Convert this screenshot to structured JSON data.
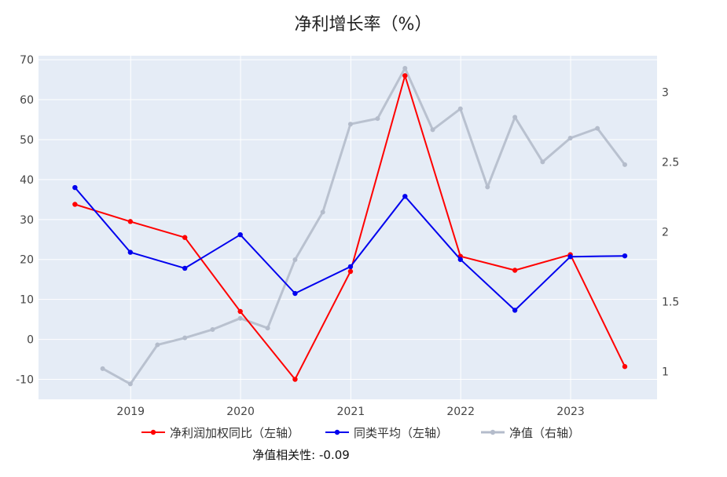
{
  "chart_data": {
    "type": "line",
    "title": "净利增长率（%）",
    "annotation": "净值相关性: -0.09",
    "left_axis": {
      "range": [
        -15,
        71
      ],
      "ticks": [
        -10,
        0,
        10,
        20,
        30,
        40,
        50,
        60,
        70
      ]
    },
    "right_axis": {
      "range": [
        0.8,
        3.26
      ],
      "ticks": [
        1,
        1.5,
        2,
        2.5,
        3
      ]
    },
    "x_axis": {
      "range": [
        "2018-03-01",
        "2023-10-15"
      ],
      "ticks": [
        "2019",
        "2020",
        "2021",
        "2022",
        "2023"
      ]
    },
    "grid": true,
    "legend_position": "bottom-center",
    "series": [
      {
        "name": "净利润加权同比（左轴）",
        "axis": "left",
        "color": "#ff0000",
        "x": [
          "2018-06-30",
          "2018-12-31",
          "2019-06-30",
          "2019-12-31",
          "2020-06-30",
          "2020-12-31",
          "2021-06-30",
          "2021-12-31",
          "2022-06-30",
          "2022-12-31",
          "2023-06-30"
        ],
        "y": [
          33.8,
          29.5,
          25.5,
          7.0,
          -10.0,
          17.0,
          66.0,
          20.8,
          17.3,
          21.2,
          -6.8
        ]
      },
      {
        "name": "同类平均（左轴）",
        "axis": "left",
        "color": "#0000ee",
        "x": [
          "2018-06-30",
          "2018-12-31",
          "2019-06-30",
          "2019-12-31",
          "2020-06-30",
          "2020-12-31",
          "2021-06-30",
          "2021-12-31",
          "2022-06-30",
          "2022-12-31",
          "2023-06-30"
        ],
        "y": [
          38.0,
          21.8,
          17.8,
          26.2,
          11.5,
          18.2,
          35.8,
          20.0,
          7.3,
          20.7,
          20.9
        ]
      },
      {
        "name": "净值（右轴）",
        "axis": "right",
        "color": "#b4bccb",
        "x": [
          "2018-09-30",
          "2018-12-31",
          "2019-03-31",
          "2019-06-30",
          "2019-09-30",
          "2019-12-31",
          "2020-03-31",
          "2020-06-30",
          "2020-09-30",
          "2020-12-31",
          "2021-03-31",
          "2021-06-30",
          "2021-09-30",
          "2021-12-31",
          "2022-03-31",
          "2022-06-30",
          "2022-09-30",
          "2022-12-31",
          "2023-03-31",
          "2023-06-30"
        ],
        "y": [
          1.02,
          0.91,
          1.19,
          1.24,
          1.3,
          1.38,
          1.31,
          1.8,
          2.14,
          2.77,
          2.81,
          3.17,
          2.73,
          2.88,
          2.32,
          2.82,
          2.5,
          2.67,
          2.74,
          2.48
        ]
      }
    ]
  }
}
